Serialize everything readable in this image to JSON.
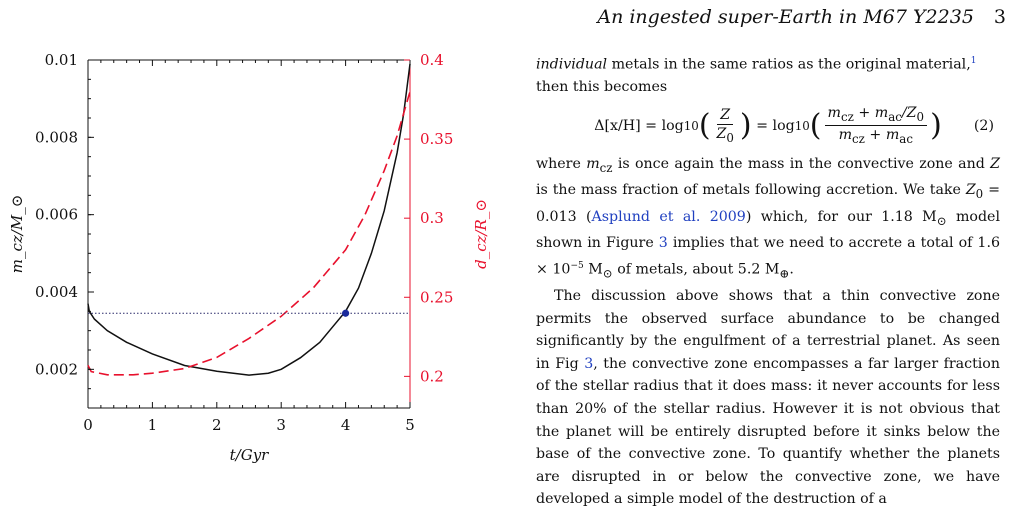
{
  "header": {
    "running_title": "An ingested super-Earth in M67 Y2235",
    "page_number": "3"
  },
  "chart_data": {
    "type": "line",
    "xlabel": "t/Gyr",
    "ylabel_left": "m_cz/M_⊙",
    "ylabel_right": "d_cz/R_⊙",
    "xlim": [
      0,
      5
    ],
    "ylim_left": [
      0.001,
      0.01
    ],
    "ylim_right": [
      0.18,
      0.4
    ],
    "x_ticks": [
      "0",
      "1",
      "2",
      "3",
      "4",
      "5"
    ],
    "y_ticks_left": [
      "0.002",
      "0.004",
      "0.006",
      "0.008",
      "0.01"
    ],
    "y_ticks_right": [
      "0.2",
      "0.25",
      "0.3",
      "0.35",
      "0.4"
    ],
    "grid": false,
    "colors": {
      "mass": "#111111",
      "depth": "#e8112d",
      "marker": "#1a2a9c",
      "reference": "#2a2a6a"
    },
    "series": [
      {
        "axis": "left",
        "style": "solid",
        "x": [
          0,
          0.02,
          0.1,
          0.3,
          0.6,
          1.0,
          1.5,
          2.0,
          2.5,
          2.8,
          3.0,
          3.3,
          3.6,
          3.8,
          4.0,
          4.2,
          4.4,
          4.6,
          4.8,
          4.9,
          5.0
        ],
        "y": [
          0.0037,
          0.0035,
          0.0033,
          0.003,
          0.0027,
          0.0024,
          0.0021,
          0.00195,
          0.00185,
          0.0019,
          0.002,
          0.0023,
          0.0027,
          0.0031,
          0.0035,
          0.0041,
          0.005,
          0.0061,
          0.0076,
          0.0086,
          0.0099
        ]
      },
      {
        "axis": "right",
        "style": "dashed",
        "x": [
          0,
          0.05,
          0.3,
          0.7,
          1.0,
          1.5,
          2.0,
          2.5,
          3.0,
          3.5,
          4.0,
          4.3,
          4.6,
          4.8,
          5.0
        ],
        "y": [
          0.207,
          0.203,
          0.201,
          0.201,
          0.202,
          0.205,
          0.212,
          0.224,
          0.238,
          0.256,
          0.28,
          0.302,
          0.33,
          0.352,
          0.38
        ]
      },
      {
        "axis": "left",
        "style": "dotted",
        "x": [
          0,
          5
        ],
        "y": [
          0.00345,
          0.00345
        ]
      }
    ],
    "marker": {
      "x": 4.0,
      "y": 0.00345
    }
  },
  "text": {
    "p1_a": "individual",
    "p1_b": " metals in the same ratios as the original material,",
    "p1_fn": "1",
    "p1_c": "then this becomes",
    "eq_lhs": "Δ[x/H] = log",
    "eq_sub": "10",
    "eq_z": "Z",
    "eq_z0": "Z",
    "eq_z0_sub": "0",
    "eq_mid": "= log",
    "eq_num": "m",
    "eq_num_a": "cz",
    "eq_num_b": " + m",
    "eq_num_c": "ac",
    "eq_num_d": "/Z",
    "eq_num_e": "0",
    "eq_den": "m",
    "eq_den_a": "cz",
    "eq_den_b": " + m",
    "eq_den_c": "ac",
    "eq_number": "(2)",
    "p2_a": "where ",
    "p2_m": "m",
    "p2_cz": "cz",
    "p2_b": " is once again the mass in the convective zone and ",
    "p2_Z": "Z",
    "p2_c": " is the mass fraction of metals following accretion. We take ",
    "p2_Z0": "Z",
    "p2_0": "0",
    "p2_d": " = 0.013 (",
    "p2_cite": "Asplund et al. 2009",
    "p2_e": ") which, for our 1.18 M",
    "p2_sun1": "⊙",
    "p2_f": " model shown in Figure ",
    "p2_fig": "3",
    "p2_g": " implies that we need to accrete a total of 1.6 × 10",
    "p2_exp": "−5",
    "p2_h": " M",
    "p2_sun2": "⊙",
    "p2_i": " of metals, about 5.2 M",
    "p2_earth": "⊕",
    "p2_j": ".",
    "p3_a": "The discussion above shows that a thin convective zone permits the observed surface abundance to be changed significantly by the engulfment of a terrestrial planet. As seen in Fig ",
    "p3_fig": "3",
    "p3_b": ", the convective zone encompasses a far larger fraction of the stellar radius that it does mass: it never accounts for less than 20% of the stellar radius. However it is not obvious that the planet will be entirely disrupted before it sinks below the base of the convective zone. To quantify whether the planets are disrupted in or below the convective zone, we have developed a simple model of the destruction of a"
  }
}
